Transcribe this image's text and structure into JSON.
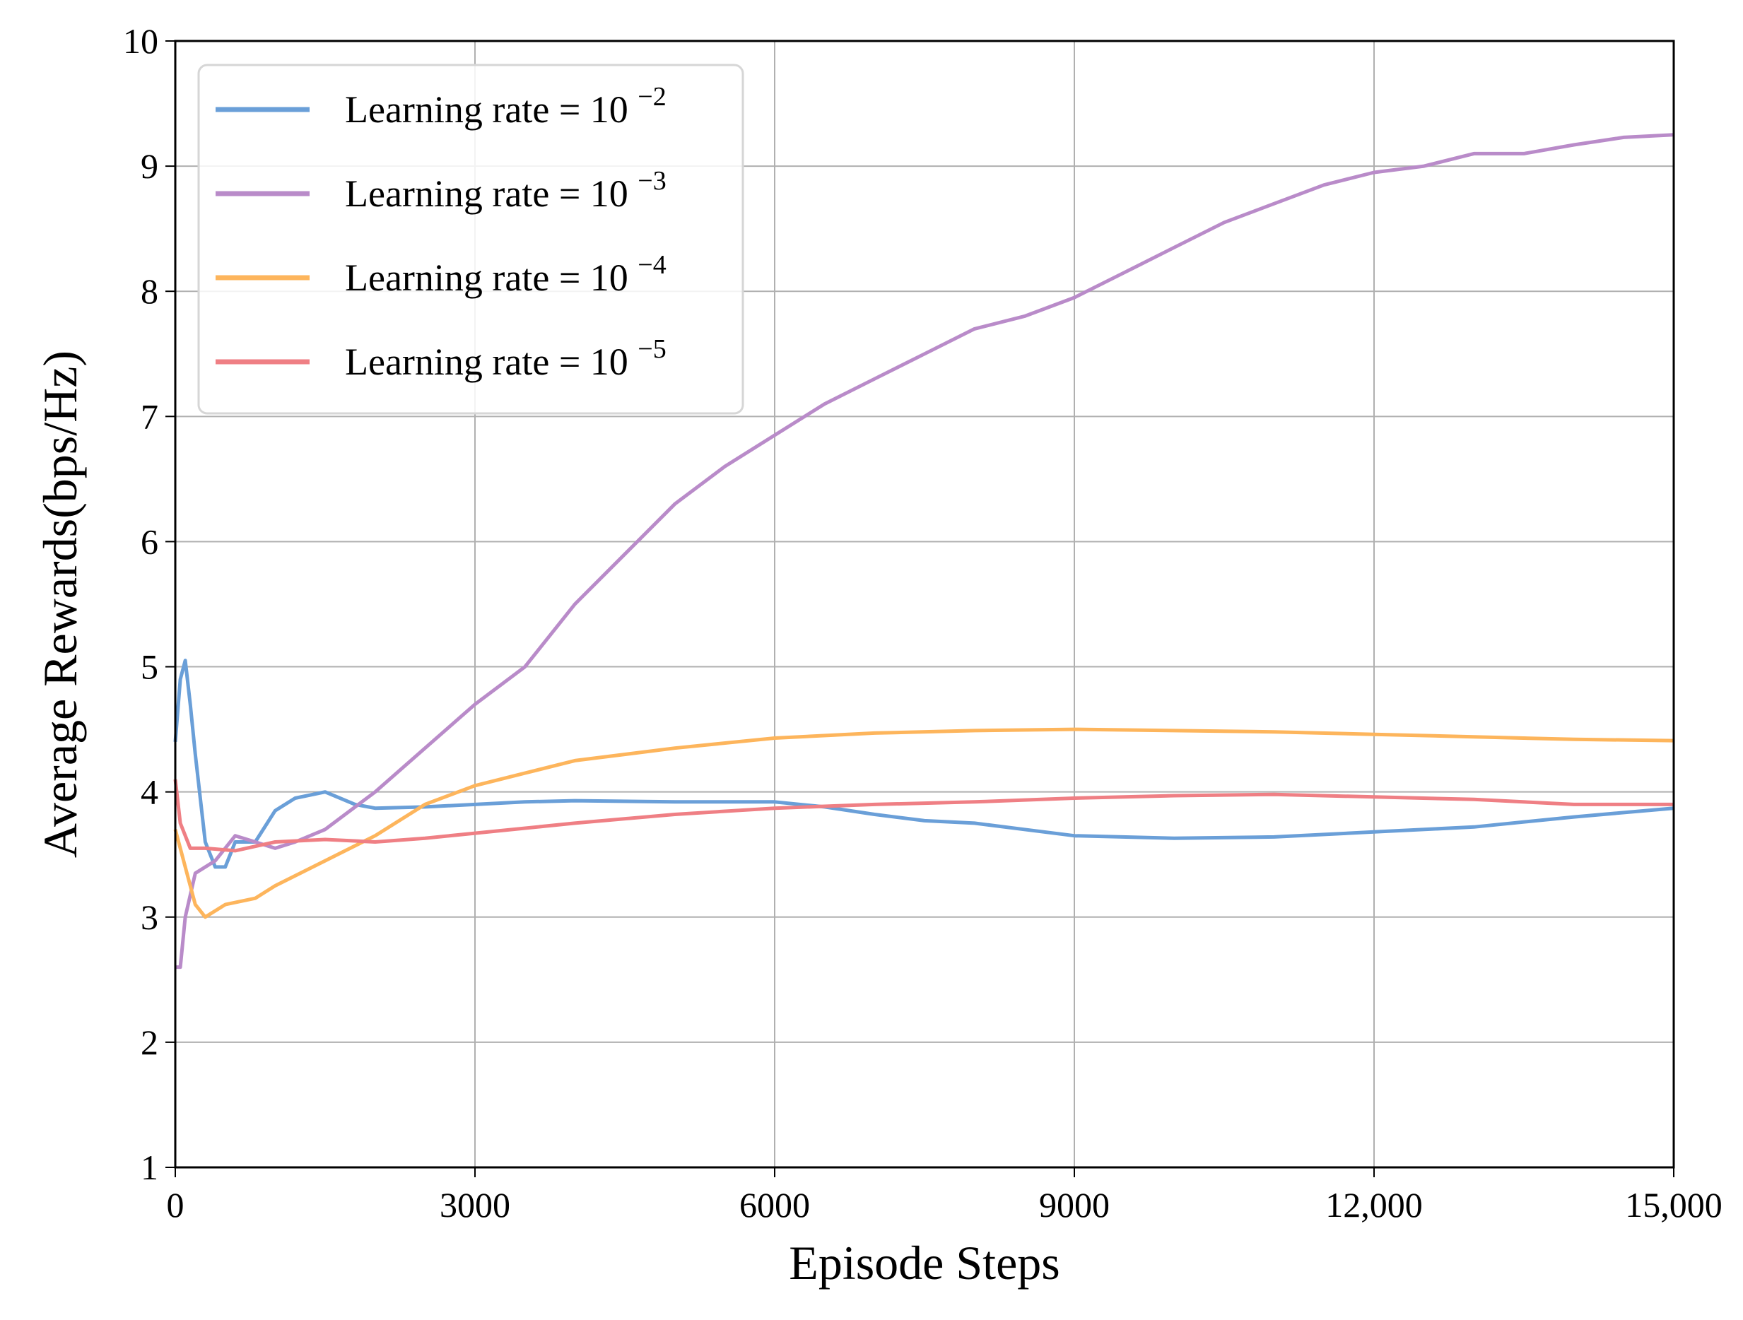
{
  "chart_data": {
    "type": "line",
    "title": "",
    "xlabel": "Episode Steps",
    "ylabel": "Average Rewards(bps/Hz)",
    "xlim": [
      0,
      15000
    ],
    "ylim": [
      1,
      10
    ],
    "grid": true,
    "legend_position": "top-left",
    "xticks": [
      0,
      3000,
      6000,
      9000,
      12000,
      15000
    ],
    "xtick_labels": [
      "0",
      "3000",
      "6000",
      "9000",
      "12,000",
      "15,000"
    ],
    "yticks": [
      1,
      2,
      3,
      4,
      5,
      6,
      7,
      8,
      9,
      10
    ],
    "ytick_labels": [
      "1",
      "2",
      "3",
      "4",
      "5",
      "6",
      "7",
      "8",
      "9",
      "10"
    ],
    "series": [
      {
        "name": "Learning rate = 10",
        "exponent": "−2",
        "color": "#6a9fd8",
        "x": [
          0,
          50,
          100,
          150,
          200,
          300,
          400,
          500,
          600,
          800,
          1000,
          1200,
          1500,
          1800,
          2000,
          2500,
          3000,
          3500,
          4000,
          5000,
          6000,
          6500,
          7000,
          7500,
          8000,
          8500,
          9000,
          10000,
          11000,
          12000,
          13000,
          14000,
          15000
        ],
        "y": [
          4.4,
          4.9,
          5.05,
          4.7,
          4.3,
          3.6,
          3.4,
          3.4,
          3.6,
          3.6,
          3.85,
          3.95,
          4.0,
          3.9,
          3.87,
          3.88,
          3.9,
          3.92,
          3.93,
          3.92,
          3.92,
          3.88,
          3.82,
          3.77,
          3.75,
          3.7,
          3.65,
          3.63,
          3.64,
          3.68,
          3.72,
          3.8,
          3.87
        ]
      },
      {
        "name": "Learning rate = 10",
        "exponent": "−3",
        "color": "#b98bc9",
        "x": [
          0,
          50,
          100,
          200,
          400,
          600,
          800,
          1000,
          1200,
          1500,
          2000,
          2500,
          3000,
          3500,
          4000,
          4500,
          5000,
          5500,
          6000,
          6500,
          7000,
          7500,
          8000,
          8500,
          9000,
          9500,
          10000,
          10500,
          11000,
          11500,
          12000,
          12500,
          13000,
          13500,
          14000,
          14500,
          15000
        ],
        "y": [
          2.6,
          2.6,
          3.0,
          3.35,
          3.45,
          3.65,
          3.6,
          3.55,
          3.6,
          3.7,
          4.0,
          4.35,
          4.7,
          5.0,
          5.5,
          5.9,
          6.3,
          6.6,
          6.85,
          7.1,
          7.3,
          7.5,
          7.7,
          7.8,
          7.95,
          8.15,
          8.35,
          8.55,
          8.7,
          8.85,
          8.95,
          9.0,
          9.1,
          9.1,
          9.17,
          9.23,
          9.25
        ]
      },
      {
        "name": "Learning rate = 10",
        "exponent": "−4",
        "color": "#fdb55c",
        "x": [
          0,
          100,
          200,
          300,
          500,
          800,
          1000,
          1500,
          2000,
          2500,
          3000,
          3500,
          4000,
          5000,
          6000,
          7000,
          8000,
          9000,
          10000,
          11000,
          12000,
          13000,
          14000,
          15000
        ],
        "y": [
          3.7,
          3.4,
          3.1,
          3.0,
          3.1,
          3.15,
          3.25,
          3.45,
          3.65,
          3.9,
          4.05,
          4.15,
          4.25,
          4.35,
          4.43,
          4.47,
          4.49,
          4.5,
          4.49,
          4.48,
          4.46,
          4.44,
          4.42,
          4.41
        ]
      },
      {
        "name": "Learning rate = 10",
        "exponent": "−5",
        "color": "#ef7f84",
        "x": [
          0,
          50,
          150,
          300,
          600,
          1000,
          1500,
          2000,
          2500,
          3000,
          4000,
          5000,
          6000,
          7000,
          8000,
          9000,
          10000,
          11000,
          12000,
          13000,
          14000,
          15000
        ],
        "y": [
          4.1,
          3.75,
          3.55,
          3.55,
          3.53,
          3.6,
          3.62,
          3.6,
          3.63,
          3.67,
          3.75,
          3.82,
          3.87,
          3.9,
          3.92,
          3.95,
          3.97,
          3.98,
          3.96,
          3.94,
          3.9,
          3.9
        ]
      }
    ]
  }
}
